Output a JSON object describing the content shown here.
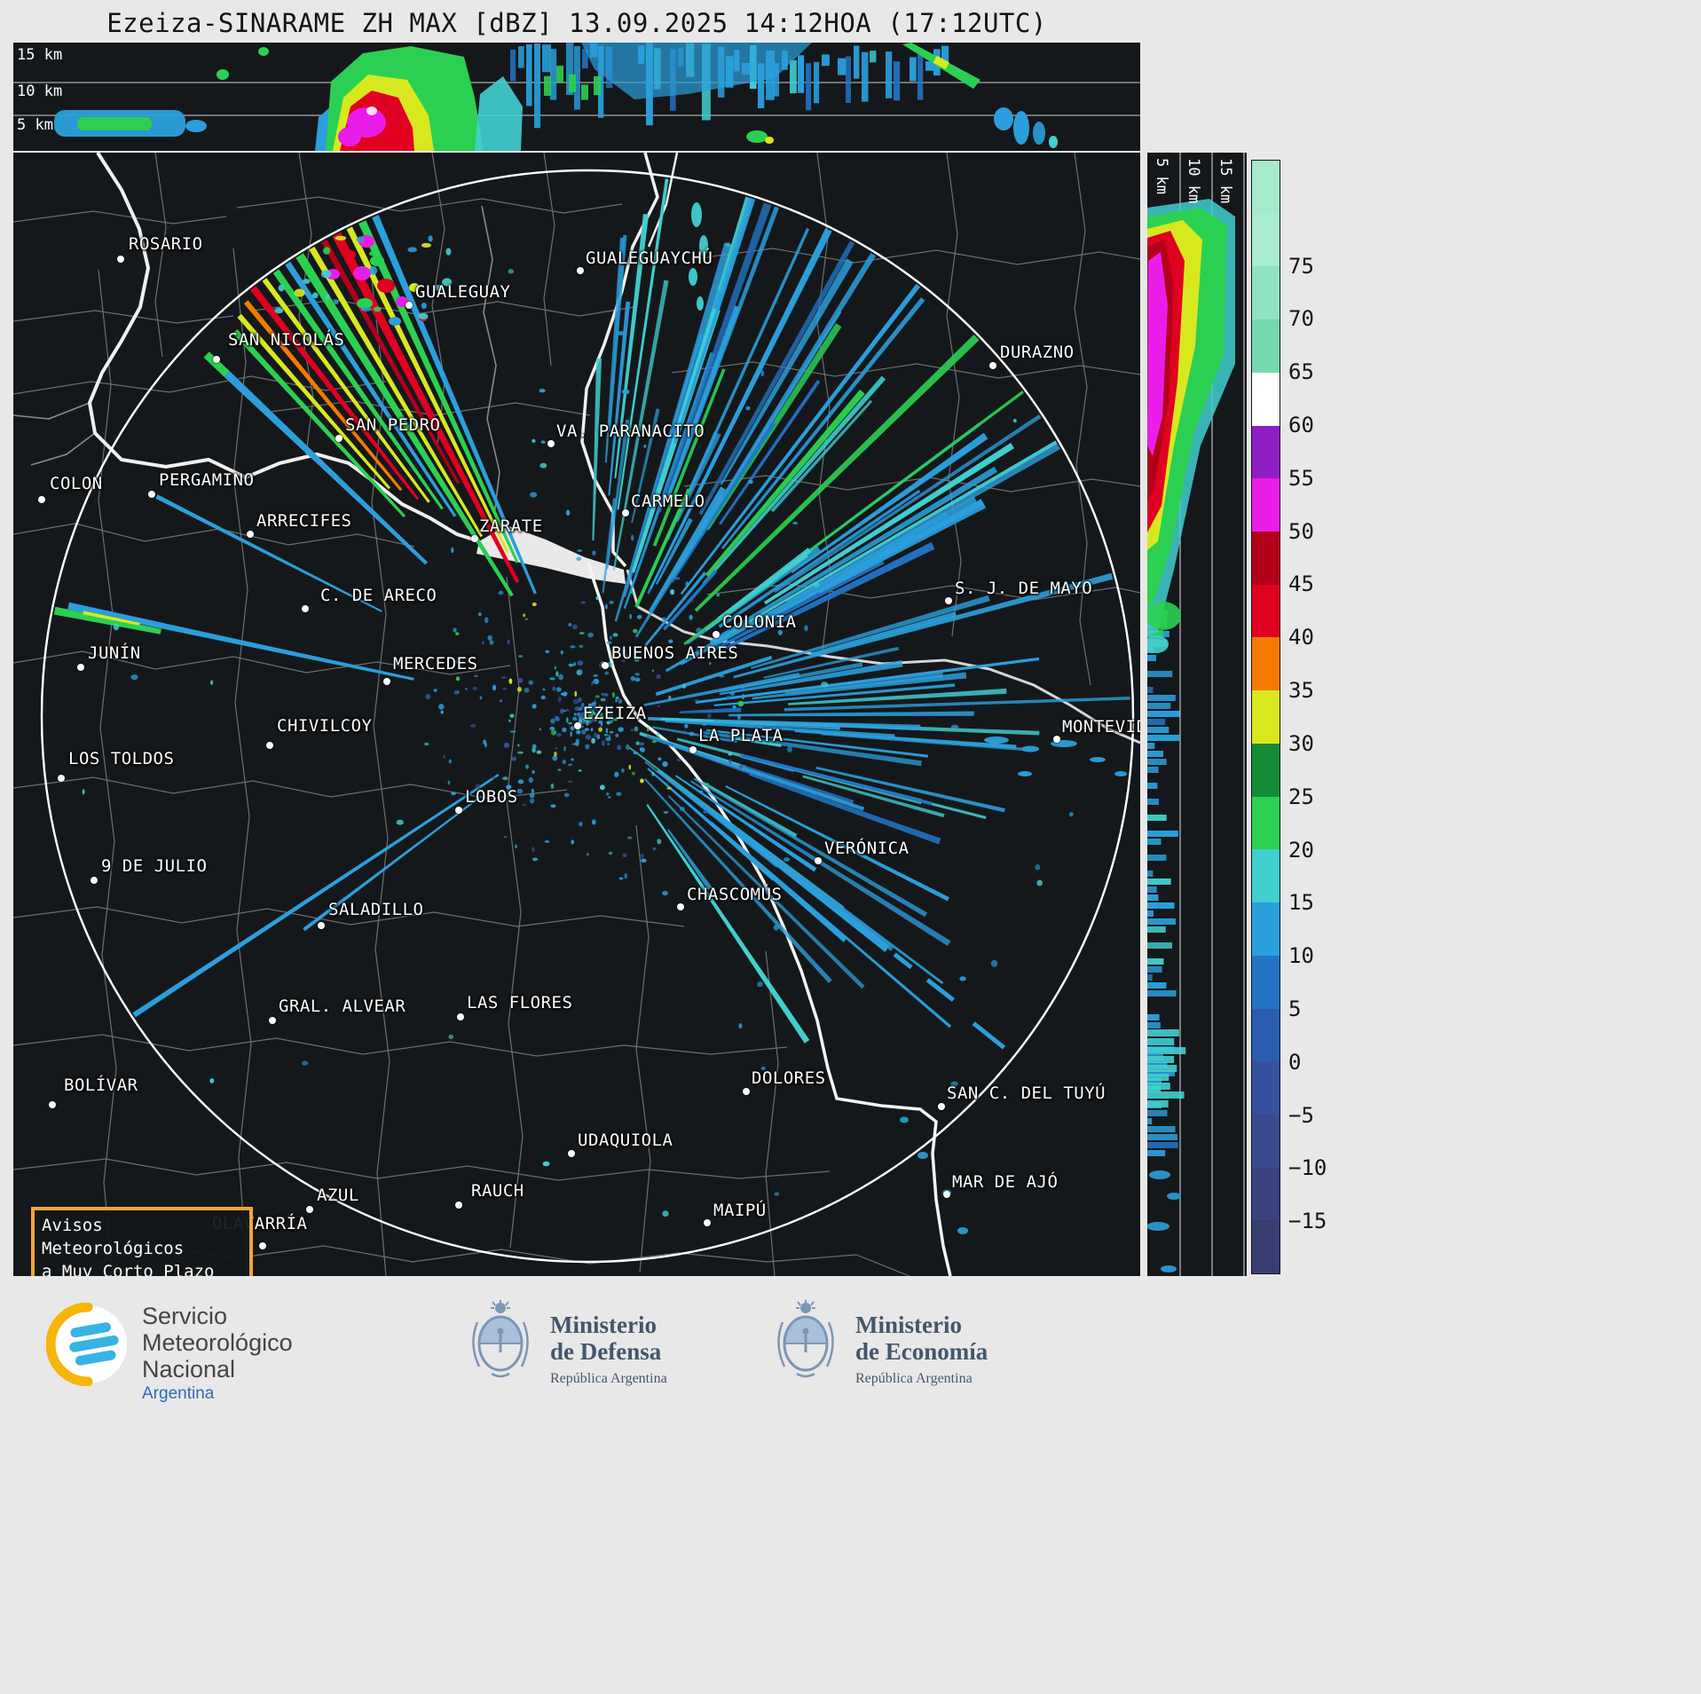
{
  "title": "Ezeiza-SINARAME ZH MAX [dBZ] 13.09.2025 14:12HOA (17:12UTC)",
  "cross_top": {
    "altitude_labels": [
      "15 km",
      "10 km",
      "5 km"
    ]
  },
  "cross_right": {
    "altitude_labels": [
      "5 km",
      "10 km",
      "15 km"
    ]
  },
  "colorbar": {
    "unit": "dBZ",
    "ticks": [
      "75",
      "70",
      "65",
      "60",
      "55",
      "50",
      "45",
      "40",
      "35",
      "30",
      "25",
      "20",
      "15",
      "10",
      "5",
      "0",
      "−5",
      "−10",
      "−15"
    ],
    "blocks": [
      "#a5ebcb",
      "#aaeccf",
      "#8fe3c0",
      "#74d9af",
      "#ffffff",
      "#8f1fc2",
      "#ea1de8",
      "#b3001a",
      "#e00020",
      "#f47a00",
      "#d8e81f",
      "#128c35",
      "#2bd052",
      "#41cfd0",
      "#2b9fdb",
      "#2374c4",
      "#2a5cb0",
      "#35519f",
      "#3a4b8f",
      "#3a4280",
      "#383d72"
    ]
  },
  "palette": {
    "blue": "#2b9fdb",
    "blue2": "#2374c4",
    "cyan": "#41cfd0",
    "green": "#2bd052",
    "darkgreen": "#128c35",
    "yellow": "#d8e81f",
    "orange": "#f47a00",
    "red": "#e00020",
    "darkred": "#b3001a",
    "magenta": "#ea1de8",
    "purple": "#8f1fc2",
    "slate": "#35519f",
    "white": "#ffffff"
  },
  "map": {
    "warning_box": {
      "line1": "Avisos Meteorológicos",
      "line2": "a Muy Corto Plazo"
    },
    "cities": [
      {
        "name": "ROSARIO",
        "label": [
          130,
          104
        ],
        "dot": [
          121,
          120
        ]
      },
      {
        "name": "GUALEGUAYCHÚ",
        "label": [
          645,
          120
        ],
        "dot": [
          639,
          133
        ]
      },
      {
        "name": "GUALEGUAY",
        "label": [
          453,
          158
        ],
        "dot": [
          446,
          172
        ]
      },
      {
        "name": "SAN NICOLÁS",
        "label": [
          242,
          212
        ],
        "dot": [
          229,
          233
        ]
      },
      {
        "name": "DURAZNO",
        "label": [
          1112,
          226
        ],
        "dot": [
          1104,
          240
        ]
      },
      {
        "name": "SAN PEDRO",
        "label": [
          374,
          308
        ],
        "dot": [
          367,
          322
        ]
      },
      {
        "name": "VA. PARANACITO",
        "label": [
          612,
          315
        ],
        "dot": [
          606,
          328
        ]
      },
      {
        "name": "COLON",
        "label": [
          41,
          374
        ],
        "dot": [
          32,
          391
        ]
      },
      {
        "name": "PERGAMINO",
        "label": [
          164,
          370
        ],
        "dot": [
          156,
          385
        ]
      },
      {
        "name": "ARRECIFES",
        "label": [
          274,
          416
        ],
        "dot": [
          267,
          430
        ]
      },
      {
        "name": "CARMELO",
        "label": [
          696,
          394
        ],
        "dot": [
          690,
          406
        ]
      },
      {
        "name": "ZARATE",
        "label": [
          525,
          422
        ],
        "dot": [
          520,
          435
        ]
      },
      {
        "name": "C. DE ARECO",
        "label": [
          346,
          500
        ],
        "dot": [
          329,
          514
        ]
      },
      {
        "name": "S. J. DE MAYO",
        "label": [
          1061,
          492
        ],
        "dot": [
          1054,
          505
        ]
      },
      {
        "name": "COLONIA",
        "label": [
          799,
          530
        ],
        "dot": [
          792,
          543
        ]
      },
      {
        "name": "JUNÍN",
        "label": [
          84,
          565
        ],
        "dot": [
          76,
          580
        ]
      },
      {
        "name": "MERCEDES",
        "label": [
          428,
          577
        ],
        "dot": [
          421,
          596
        ]
      },
      {
        "name": "BUENOS AIRES",
        "label": [
          674,
          565
        ],
        "dot": [
          667,
          578
        ]
      },
      {
        "name": "EZEIZA",
        "label": [
          642,
          633
        ],
        "dot": [
          636,
          646
        ]
      },
      {
        "name": "MONTEVIDEO",
        "label": [
          1182,
          648
        ],
        "dot": [
          1176,
          661
        ]
      },
      {
        "name": "CHIVILCOY",
        "label": [
          297,
          647
        ],
        "dot": [
          289,
          668
        ]
      },
      {
        "name": "LA PLATA",
        "label": [
          772,
          658
        ],
        "dot": [
          766,
          673
        ]
      },
      {
        "name": "LOS TOLDOS",
        "label": [
          62,
          684
        ],
        "dot": [
          54,
          705
        ]
      },
      {
        "name": "LOBOS",
        "label": [
          509,
          727
        ],
        "dot": [
          502,
          741
        ]
      },
      {
        "name": "VERÓNICA",
        "label": [
          914,
          785
        ],
        "dot": [
          907,
          798
        ]
      },
      {
        "name": "9 DE JULIO",
        "label": [
          99,
          805
        ],
        "dot": [
          91,
          820
        ]
      },
      {
        "name": "CHASCOMÚS",
        "label": [
          759,
          837
        ],
        "dot": [
          752,
          850
        ]
      },
      {
        "name": "SALADILLO",
        "label": [
          355,
          854
        ],
        "dot": [
          347,
          871
        ]
      },
      {
        "name": "GRAL. ALVEAR",
        "label": [
          299,
          963
        ],
        "dot": [
          292,
          978
        ]
      },
      {
        "name": "LAS FLORES",
        "label": [
          511,
          959
        ],
        "dot": [
          504,
          974
        ]
      },
      {
        "name": "BOLÍVAR",
        "label": [
          57,
          1052
        ],
        "dot": [
          44,
          1073
        ]
      },
      {
        "name": "DOLORES",
        "label": [
          832,
          1044
        ],
        "dot": [
          826,
          1058
        ]
      },
      {
        "name": "SAN C. DEL TUYÚ",
        "label": [
          1052,
          1061
        ],
        "dot": [
          1046,
          1075
        ]
      },
      {
        "name": "UDAQUIOLA",
        "label": [
          636,
          1114
        ],
        "dot": [
          629,
          1128
        ]
      },
      {
        "name": "AZUL",
        "label": [
          342,
          1176
        ],
        "dot": [
          334,
          1191
        ]
      },
      {
        "name": "RAUCH",
        "label": [
          516,
          1171
        ],
        "dot": [
          502,
          1186
        ]
      },
      {
        "name": "MAR DE AJÓ",
        "label": [
          1058,
          1161
        ],
        "dot": [
          1052,
          1174
        ]
      },
      {
        "name": "MAIPÚ",
        "label": [
          789,
          1193
        ],
        "dot": [
          782,
          1206
        ]
      },
      {
        "name": "OLAVARRÍA",
        "label": [
          224,
          1208
        ],
        "dot": [
          281,
          1232
        ]
      }
    ]
  },
  "footer": {
    "smn": {
      "lines": [
        "Servicio",
        "Meteorológico",
        "Nacional"
      ],
      "country": "Argentina"
    },
    "defensa": {
      "title_lines": [
        "Ministerio",
        "de Defensa"
      ],
      "subtitle": "República Argentina"
    },
    "economia": {
      "title_lines": [
        "Ministerio",
        "de Economía"
      ],
      "subtitle": "República Argentina"
    }
  }
}
